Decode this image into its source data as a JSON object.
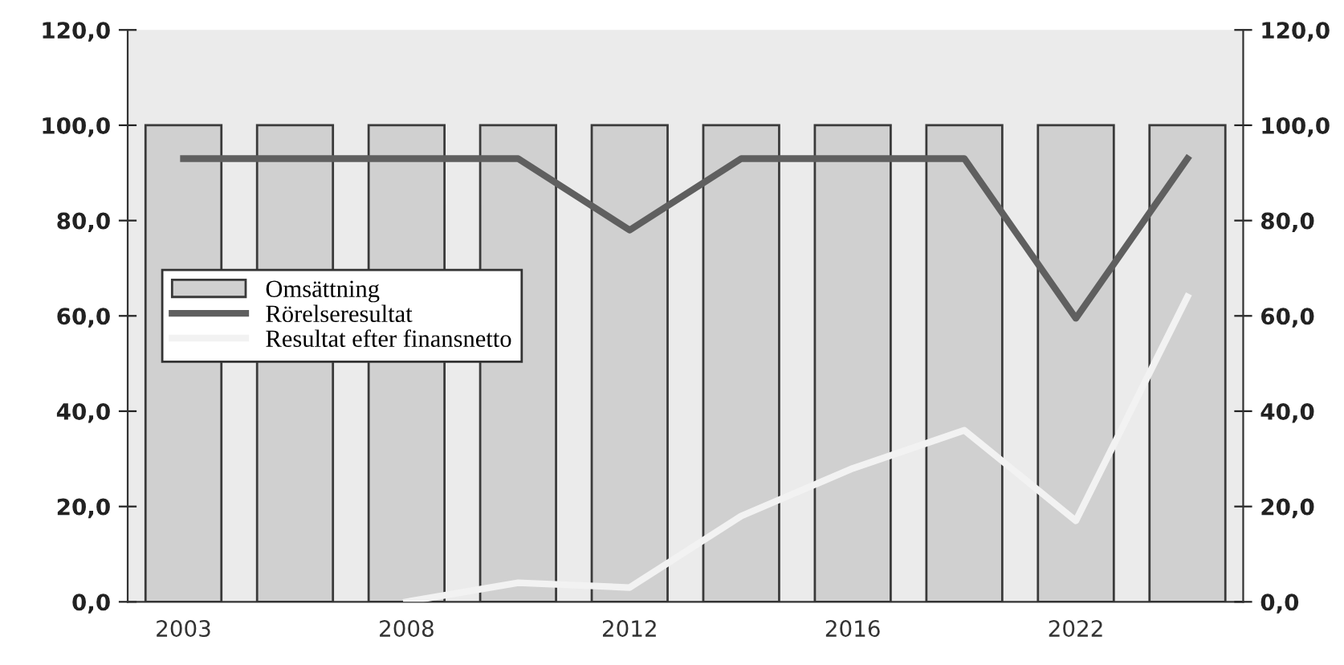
{
  "chart_data": {
    "type": "bar",
    "categories": [
      "2003",
      null,
      "2008",
      null,
      "2012",
      null,
      "2016",
      null,
      "2022",
      null
    ],
    "series": [
      {
        "name": "Omsättning",
        "color": "#d0d0d0",
        "values": [
          100,
          100,
          100,
          100,
          100,
          100,
          100,
          100,
          100,
          100
        ]
      },
      {
        "name": "Rörelseresultat",
        "type": "line",
        "color": "#5f5f5f",
        "values": [
          93,
          93,
          93,
          93,
          78,
          93,
          93,
          93,
          59.5,
          93
        ]
      },
      {
        "name": "Resultat efter finansnetto",
        "type": "line",
        "color": "#f2f2f2",
        "values": [
          null,
          null,
          0,
          4,
          3,
          18,
          28,
          36,
          17,
          64
        ]
      }
    ],
    "ylim": [
      0,
      120
    ],
    "yticks": [
      {
        "value": 0,
        "label": "0,0"
      },
      {
        "value": 20,
        "label": "20,0"
      },
      {
        "value": 40,
        "label": "40,0"
      },
      {
        "value": 60,
        "label": "60,0"
      },
      {
        "value": 80,
        "label": "80,0"
      },
      {
        "value": 100,
        "label": "100,0"
      },
      {
        "value": 120,
        "label": "120,0"
      }
    ],
    "y2lim": [
      0,
      120
    ],
    "y2ticks": [
      {
        "value": 0,
        "label": "0,0"
      },
      {
        "value": 20,
        "label": "20,0"
      },
      {
        "value": 40,
        "label": "40,0"
      },
      {
        "value": 60,
        "label": "60,0"
      },
      {
        "value": 80,
        "label": "80,0"
      },
      {
        "value": 100,
        "label": "100,0"
      },
      {
        "value": 120,
        "label": "120,0"
      }
    ],
    "grid": false,
    "legend": "left",
    "marker": "none",
    "line_style": "solid"
  }
}
